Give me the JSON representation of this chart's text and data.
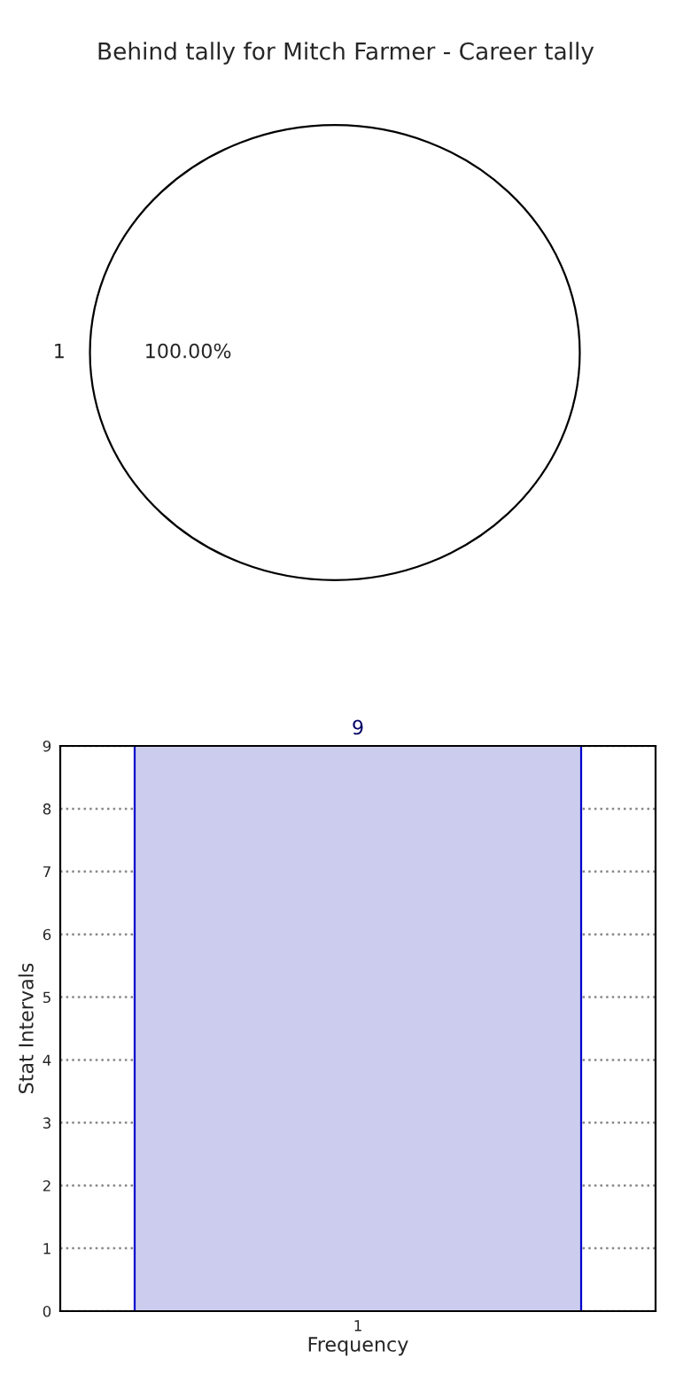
{
  "chart_data": [
    {
      "type": "pie",
      "title": "Behind tally for Mitch Farmer - Career tally",
      "categories": [
        "1"
      ],
      "values": [
        100
      ],
      "colors": [
        "#ffffff"
      ],
      "value_labels": [
        "100.00%"
      ]
    },
    {
      "type": "bar",
      "categories": [
        "1"
      ],
      "values": [
        9
      ],
      "color": "#ccccee",
      "data_labels": true,
      "xlabel": "Frequency",
      "ylabel": "Stat Intervals",
      "ylim": [
        0,
        9
      ],
      "yticks": [
        0,
        1,
        2,
        3,
        4,
        5,
        6,
        7,
        8,
        9
      ],
      "grid": true
    }
  ]
}
